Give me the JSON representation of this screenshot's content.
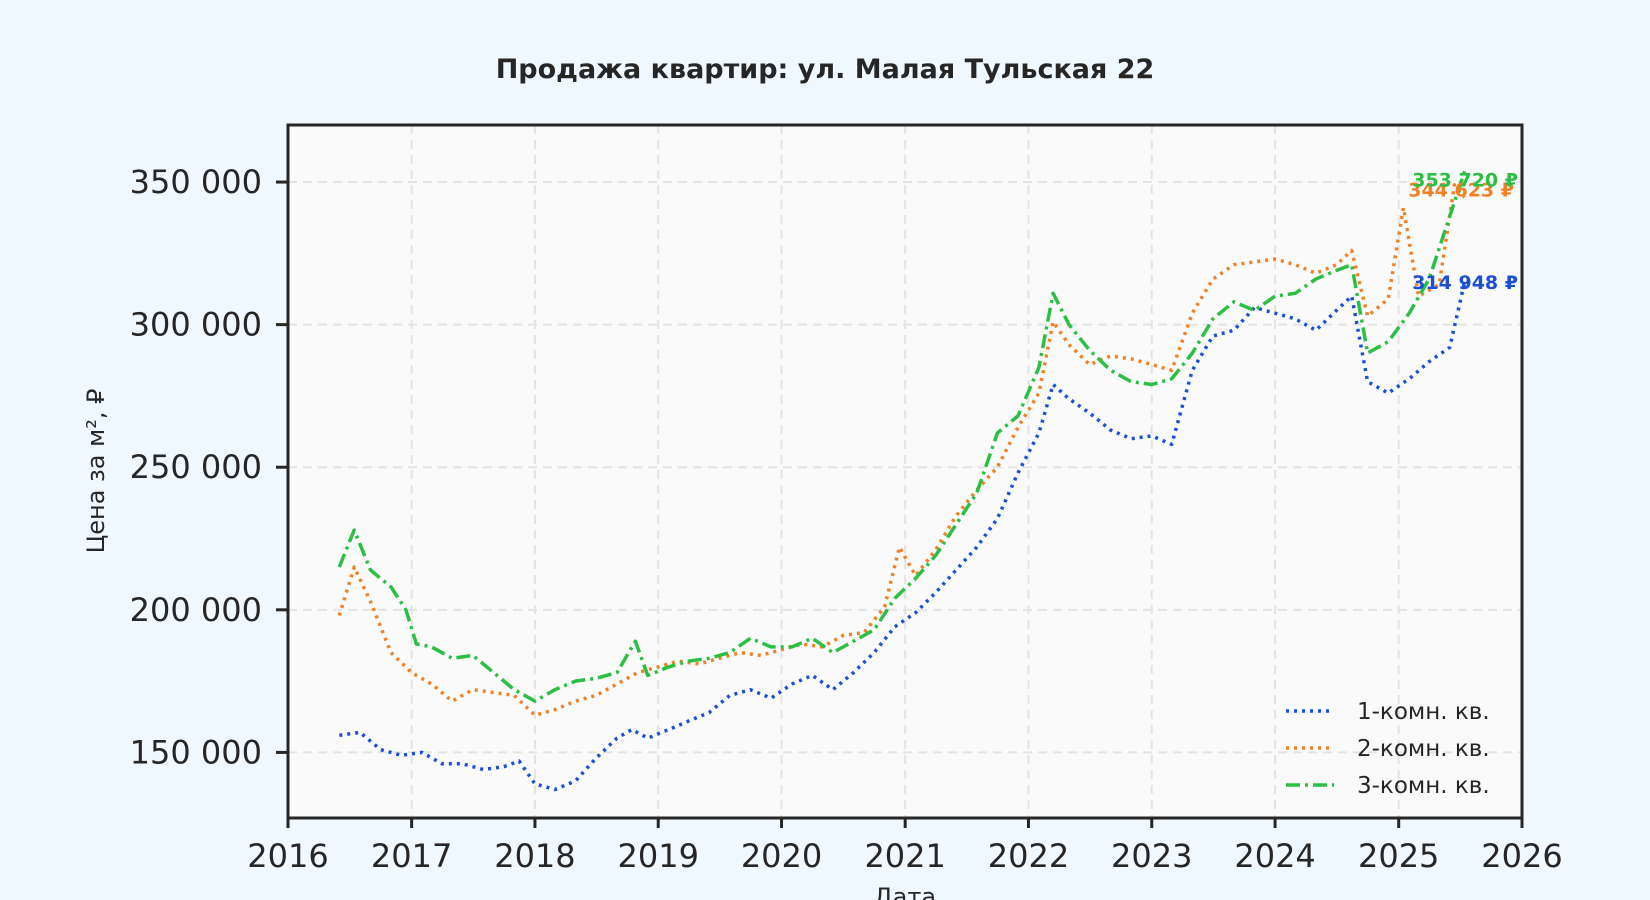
{
  "chart_data": {
    "type": "line",
    "title": "Продажа квартир: ул. Малая Тульская 22",
    "xlabel": "Дата",
    "ylabel": "Цена за м², ₽",
    "xlim": [
      "2016-01-01",
      "2026-01-01"
    ],
    "ylim": [
      127000,
      370000
    ],
    "x_ticks": [
      "2016",
      "2017",
      "2018",
      "2019",
      "2020",
      "2021",
      "2022",
      "2023",
      "2024",
      "2025",
      "2026"
    ],
    "y_ticks": [
      {
        "value": 150000,
        "label": "150 000"
      },
      {
        "value": 200000,
        "label": "200 000"
      },
      {
        "value": 250000,
        "label": "250 000"
      },
      {
        "value": 300000,
        "label": "300 000"
      },
      {
        "value": 350000,
        "label": "350 000"
      }
    ],
    "grid": true,
    "legend_position": "bottom-right",
    "series": [
      {
        "name": "1-комн. кв.",
        "color": "#1a4fd6",
        "dash": "dotted",
        "end_label": "314 948 ₽",
        "x": [
          "2016-06-01",
          "2016-08-01",
          "2016-10-01",
          "2016-12-01",
          "2017-02-01",
          "2017-04-01",
          "2017-06-01",
          "2017-08-01",
          "2017-10-01",
          "2017-11-15",
          "2018-01-01",
          "2018-03-01",
          "2018-05-01",
          "2018-07-01",
          "2018-09-01",
          "2018-10-15",
          "2018-12-01",
          "2019-02-01",
          "2019-04-01",
          "2019-06-01",
          "2019-08-01",
          "2019-10-01",
          "2019-12-01",
          "2020-02-01",
          "2020-04-01",
          "2020-06-01",
          "2020-08-01",
          "2020-10-01",
          "2020-12-01",
          "2021-02-01",
          "2021-04-01",
          "2021-06-01",
          "2021-08-01",
          "2021-10-01",
          "2021-12-01",
          "2022-02-01",
          "2022-03-15",
          "2022-05-01",
          "2022-07-01",
          "2022-09-01",
          "2022-11-01",
          "2023-01-01",
          "2023-03-01",
          "2023-05-01",
          "2023-07-01",
          "2023-09-01",
          "2023-11-01",
          "2024-01-01",
          "2024-03-01",
          "2024-05-01",
          "2024-07-01",
          "2024-08-15",
          "2024-10-01",
          "2024-12-01",
          "2025-02-01",
          "2025-04-01",
          "2025-06-01",
          "2025-07-15"
        ],
        "values": [
          156000,
          157000,
          151000,
          149000,
          150000,
          146000,
          146000,
          144000,
          145000,
          147000,
          139000,
          137000,
          140000,
          148000,
          155000,
          158000,
          155000,
          158000,
          161000,
          164000,
          170000,
          172000,
          169000,
          174000,
          177000,
          172000,
          178000,
          185000,
          194000,
          199000,
          206000,
          214000,
          222000,
          232000,
          248000,
          262000,
          279000,
          274000,
          269000,
          263000,
          260000,
          261000,
          258000,
          284000,
          296000,
          298000,
          306000,
          304000,
          302000,
          298000,
          305000,
          310000,
          280000,
          276000,
          281000,
          287000,
          292000,
          314948
        ]
      },
      {
        "name": "2-комн. кв.",
        "color": "#f08125",
        "dash": "dotted",
        "end_label": "344 623 ₽",
        "x": [
          "2016-06-01",
          "2016-07-15",
          "2016-09-01",
          "2016-11-01",
          "2017-01-01",
          "2017-03-01",
          "2017-05-01",
          "2017-07-01",
          "2017-09-01",
          "2017-11-01",
          "2018-01-01",
          "2018-03-01",
          "2018-05-01",
          "2018-07-01",
          "2018-09-01",
          "2018-11-01",
          "2019-01-01",
          "2019-03-01",
          "2019-05-01",
          "2019-07-01",
          "2019-09-01",
          "2019-11-01",
          "2020-01-01",
          "2020-03-01",
          "2020-05-01",
          "2020-07-01",
          "2020-09-01",
          "2020-11-01",
          "2020-12-15",
          "2021-02-01",
          "2021-04-01",
          "2021-06-01",
          "2021-08-01",
          "2021-10-01",
          "2021-12-01",
          "2022-02-01",
          "2022-03-15",
          "2022-05-01",
          "2022-07-01",
          "2022-09-01",
          "2022-11-01",
          "2023-01-01",
          "2023-03-01",
          "2023-05-01",
          "2023-07-01",
          "2023-09-01",
          "2023-11-01",
          "2024-01-01",
          "2024-03-01",
          "2024-05-01",
          "2024-07-01",
          "2024-08-15",
          "2024-10-01",
          "2024-12-01",
          "2025-01-15",
          "2025-03-01",
          "2025-05-01",
          "2025-06-15",
          "2025-07-15"
        ],
        "values": [
          198000,
          215000,
          203000,
          185000,
          178000,
          174000,
          168000,
          172000,
          171000,
          170000,
          163000,
          165000,
          168000,
          170000,
          174000,
          178000,
          180000,
          182000,
          181000,
          183000,
          185000,
          184000,
          186000,
          188000,
          187000,
          191000,
          192000,
          201000,
          222000,
          212000,
          221000,
          233000,
          242000,
          250000,
          264000,
          276000,
          301000,
          293000,
          286000,
          289000,
          288000,
          286000,
          284000,
          304000,
          316000,
          321000,
          322000,
          323000,
          321000,
          318000,
          321000,
          326000,
          303000,
          309000,
          341000,
          310000,
          314000,
          349000,
          344623
        ]
      },
      {
        "name": "3-комн. кв.",
        "color": "#2bbf45",
        "dash": "dashdot",
        "end_label": "353 720 ₽",
        "x": [
          "2016-06-01",
          "2016-07-15",
          "2016-09-01",
          "2016-11-01",
          "2016-12-15",
          "2017-01-15",
          "2017-03-01",
          "2017-05-01",
          "2017-07-01",
          "2017-09-01",
          "2017-11-01",
          "2018-01-01",
          "2018-03-01",
          "2018-05-01",
          "2018-07-01",
          "2018-09-01",
          "2018-10-25",
          "2018-12-01",
          "2019-02-01",
          "2019-04-01",
          "2019-06-01",
          "2019-08-01",
          "2019-10-01",
          "2019-12-01",
          "2020-02-01",
          "2020-04-01",
          "2020-06-01",
          "2020-08-01",
          "2020-10-01",
          "2020-12-01",
          "2021-02-01",
          "2021-04-01",
          "2021-06-01",
          "2021-08-01",
          "2021-10-01",
          "2021-12-01",
          "2022-02-01",
          "2022-03-15",
          "2022-05-01",
          "2022-07-01",
          "2022-09-01",
          "2022-11-01",
          "2023-01-01",
          "2023-03-01",
          "2023-05-01",
          "2023-07-01",
          "2023-09-01",
          "2023-11-01",
          "2024-01-01",
          "2024-03-01",
          "2024-05-01",
          "2024-07-01",
          "2024-08-15",
          "2024-10-01",
          "2024-12-01",
          "2025-02-01",
          "2025-04-01",
          "2025-06-01",
          "2025-07-15"
        ],
        "values": [
          215000,
          228000,
          214000,
          208000,
          200000,
          188000,
          187000,
          183000,
          184000,
          178000,
          172000,
          168000,
          172000,
          175000,
          176000,
          178000,
          189000,
          177000,
          180000,
          182000,
          183000,
          185000,
          190000,
          187000,
          187000,
          190000,
          185000,
          189000,
          193000,
          204000,
          211000,
          219000,
          230000,
          241000,
          262000,
          268000,
          285000,
          311000,
          300000,
          291000,
          284000,
          280000,
          279000,
          281000,
          290000,
          302000,
          308000,
          305000,
          310000,
          311000,
          316000,
          319000,
          321000,
          290000,
          294000,
          304000,
          316000,
          338000,
          353720
        ]
      }
    ]
  }
}
